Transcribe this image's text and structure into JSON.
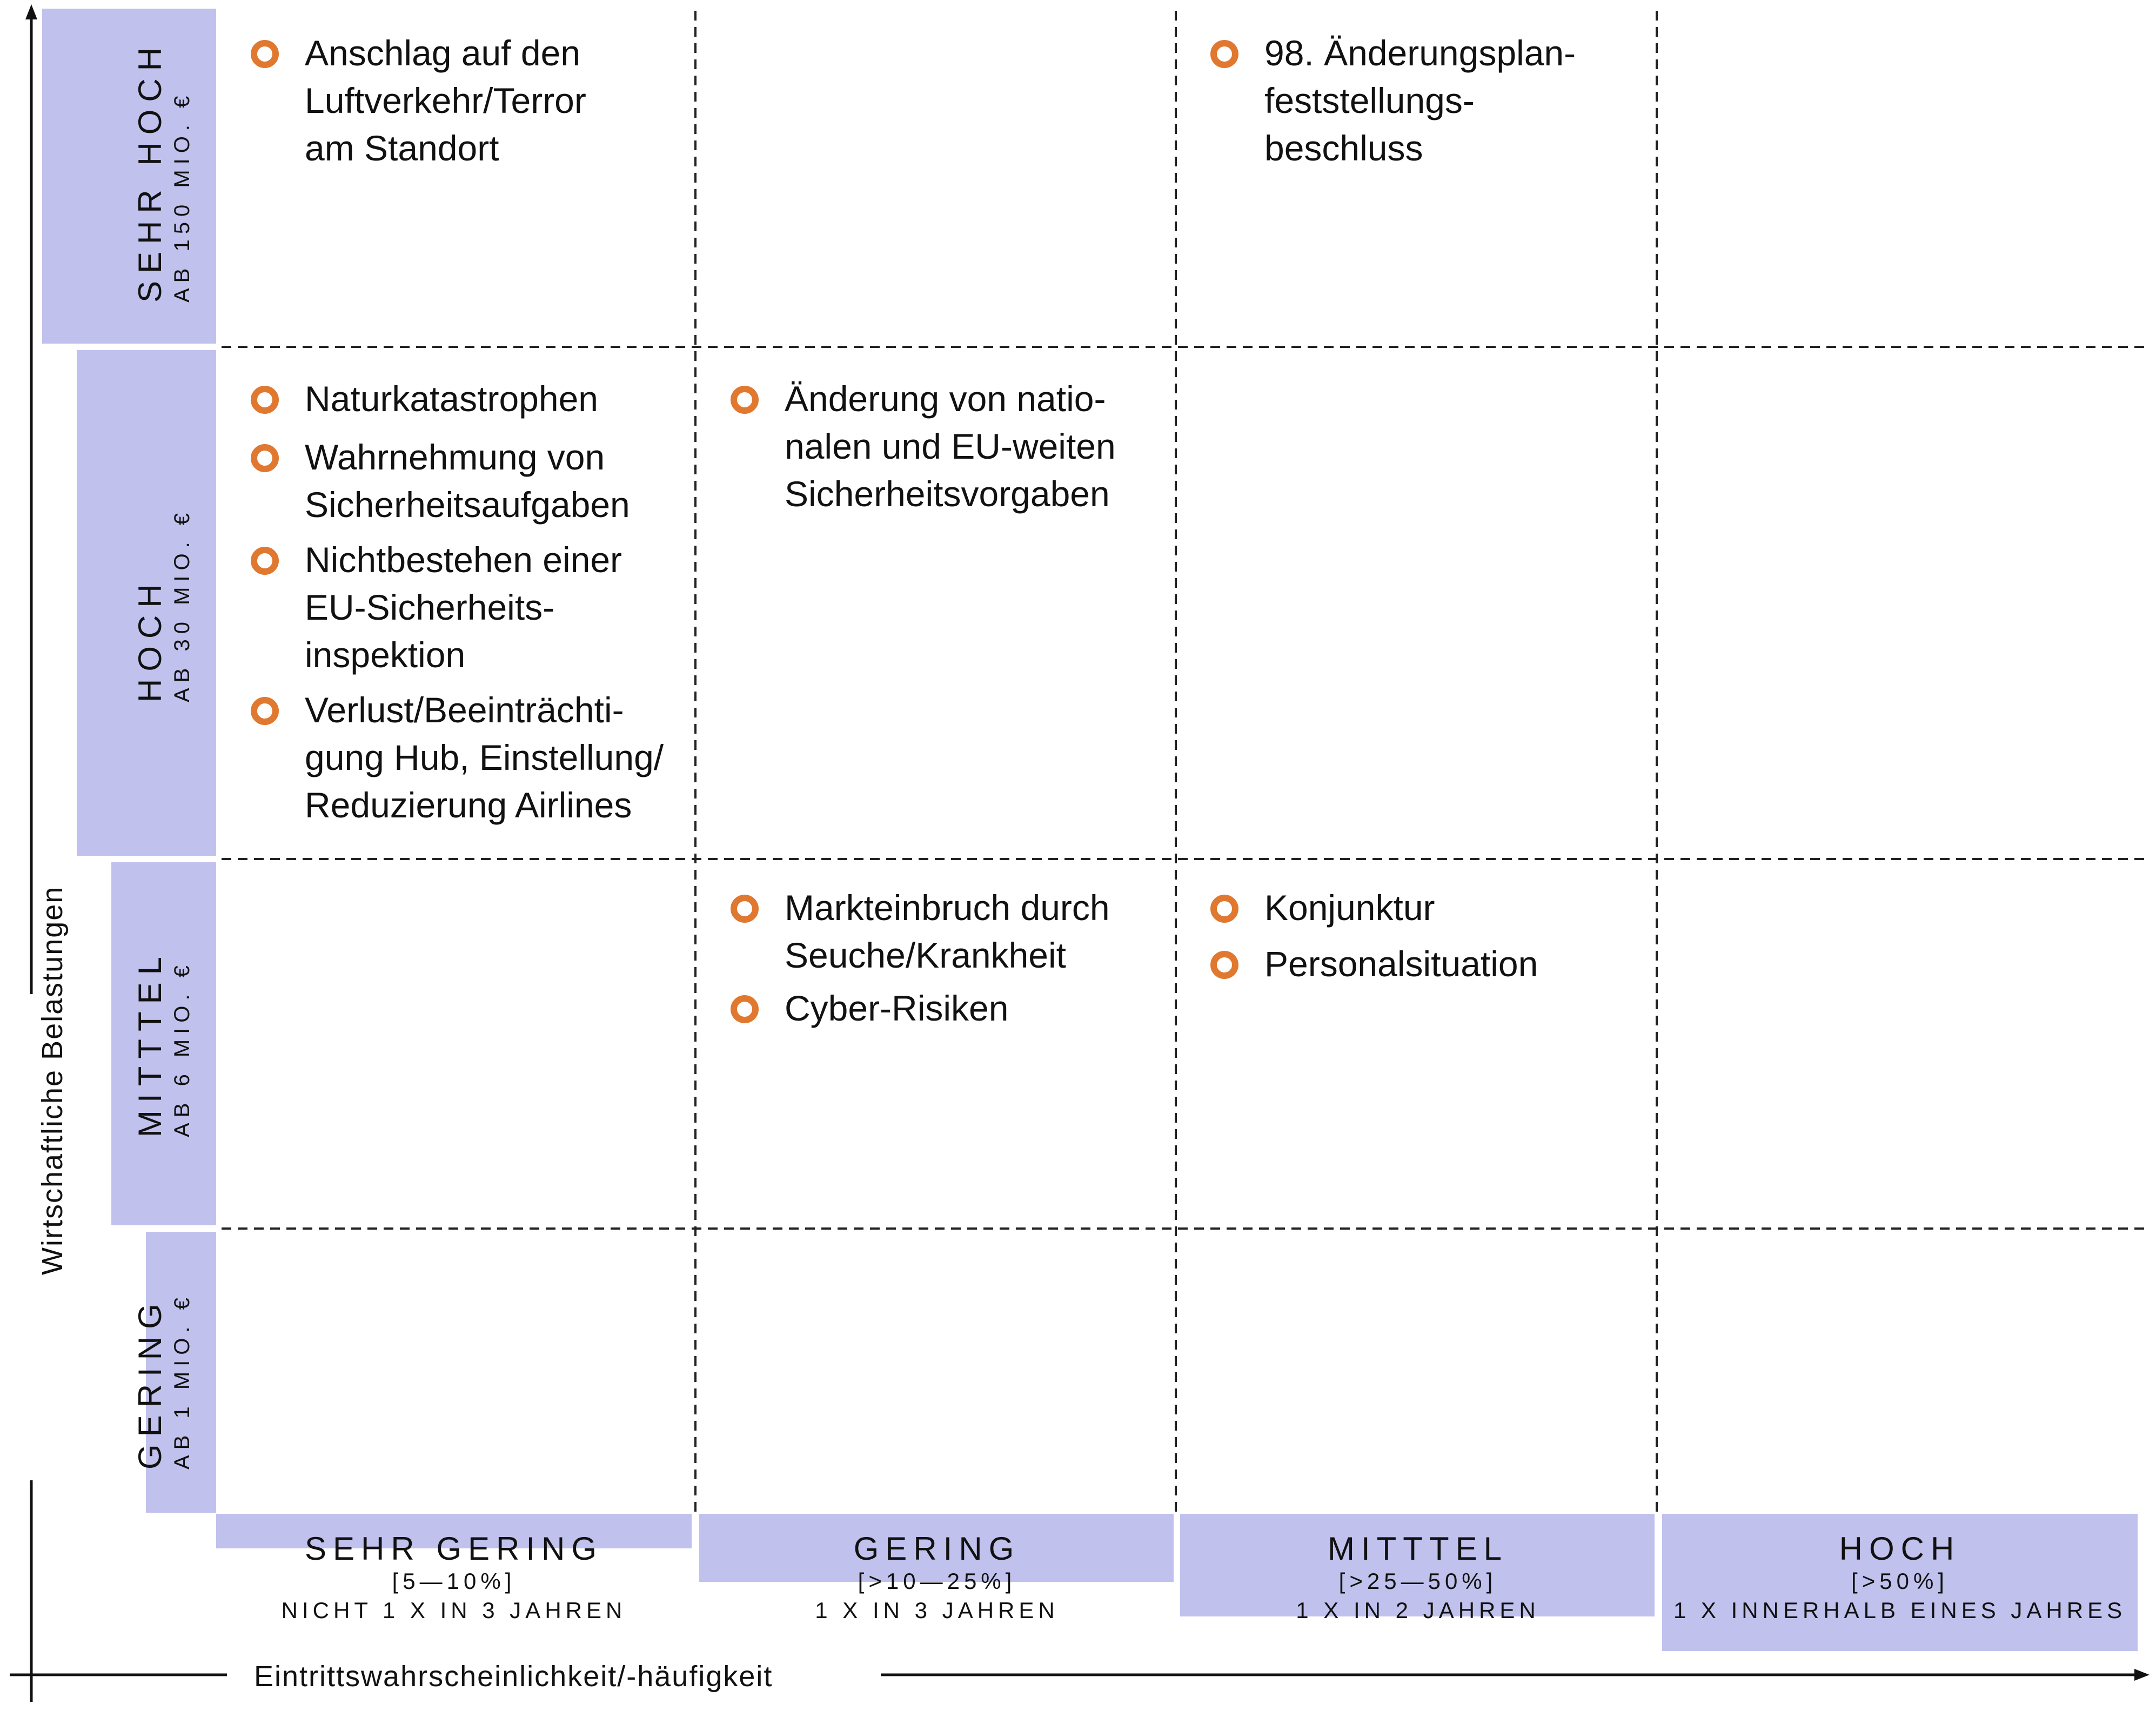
{
  "axes": {
    "x_title": "Eintrittswahrscheinlichkeit/-häufigkeit",
    "y_title": "Wirtschaftliche Belastungen"
  },
  "colors": {
    "level_bar": "#c1c1ee",
    "bullet": "#e0782f",
    "grid": "#222222"
  },
  "y_levels": [
    {
      "name": "SEHR HOCH",
      "threshold": "AB 150 MIO. €"
    },
    {
      "name": "HOCH",
      "threshold": "AB 30 MIO. €"
    },
    {
      "name": "MITTTEL",
      "threshold": "AB 6 MIO. €"
    },
    {
      "name": "GERING",
      "threshold": "AB 1 MIO. €"
    }
  ],
  "x_levels": [
    {
      "name": "SEHR GERING",
      "range": "[5—10%]",
      "frequency": "NICHT 1 X IN 3 JAHREN"
    },
    {
      "name": "GERING",
      "range": "[>10—25%]",
      "frequency": "1 X IN 3 JAHREN"
    },
    {
      "name": "MITTTEL",
      "range": "[>25—50%]",
      "frequency": "1 X IN 2 JAHREN"
    },
    {
      "name": "HOCH",
      "range": "[>50%]",
      "frequency": "1 X INNERHALB EINES JAHRES"
    }
  ],
  "cells": [
    {
      "impact": "SEHR HOCH",
      "probability": "SEHR GERING",
      "risks": [
        "Anschlag auf den\nLuftverkehr/Terror\nam Standort"
      ]
    },
    {
      "impact": "SEHR HOCH",
      "probability": "MITTTEL",
      "risks": [
        "98. Änderungsplan-\nfeststellungs-\nbeschluss"
      ]
    },
    {
      "impact": "HOCH",
      "probability": "SEHR GERING",
      "risks": [
        "Naturkatastrophen",
        "Wahrnehmung von\nSicherheitsaufgaben",
        "Nichtbestehen einer\nEU-Sicherheits-\ninspektion",
        "Verlust/Beeinträchti-\ngung Hub, Einstellung/\nReduzierung Airlines"
      ]
    },
    {
      "impact": "HOCH",
      "probability": "GERING",
      "risks": [
        "Änderung von natio-\nnalen und EU-weiten\nSicherheitsvorgaben"
      ]
    },
    {
      "impact": "MITTTEL",
      "probability": "GERING",
      "risks": [
        "Markteinbruch durch\nSeuche/Krankheit",
        "Cyber-Risiken"
      ]
    },
    {
      "impact": "MITTTEL",
      "probability": "MITTTEL",
      "risks": [
        "Konjunktur",
        "Personalsituation"
      ]
    }
  ]
}
